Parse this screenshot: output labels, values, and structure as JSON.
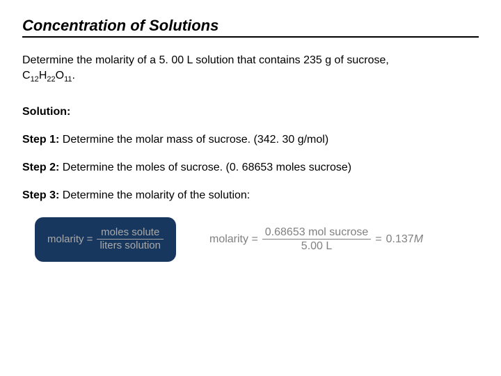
{
  "title": "Concentration of Solutions",
  "problem": {
    "line1_prefix": "Determine the molarity of a 5. 00 L solution that contains 235 g of sucrose,",
    "formula_c": "C",
    "formula_c_sub": "12",
    "formula_h": "H",
    "formula_h_sub": "22",
    "formula_o": "O",
    "formula_o_sub": "11",
    "period": "."
  },
  "solution_label": "Solution:",
  "steps": {
    "s1_label": "Step 1:",
    "s1_text": " Determine the molar mass of sucrose. (342. 30 g/mol)",
    "s2_label": "Step 2:",
    "s2_text": " Determine the moles of sucrose. (0. 68653 moles sucrose)",
    "s3_label": "Step 3:",
    "s3_text": " Determine the molarity of the solution:"
  },
  "formula_box": {
    "lhs": "molarity =",
    "numerator": "moles solute",
    "denominator": "liters solution",
    "bg_color": "#17375e",
    "text_color": "#a9a9a9"
  },
  "calc": {
    "lhs": "molarity =",
    "numerator": "0.68653 mol sucrose",
    "denominator": "5.00 L",
    "equals": "=",
    "result_val": "0.137 ",
    "result_unit": "M",
    "text_color": "#808080"
  },
  "style": {
    "page_bg": "#ffffff",
    "text_color": "#000000",
    "title_fontsize": 22,
    "body_fontsize": 16
  }
}
